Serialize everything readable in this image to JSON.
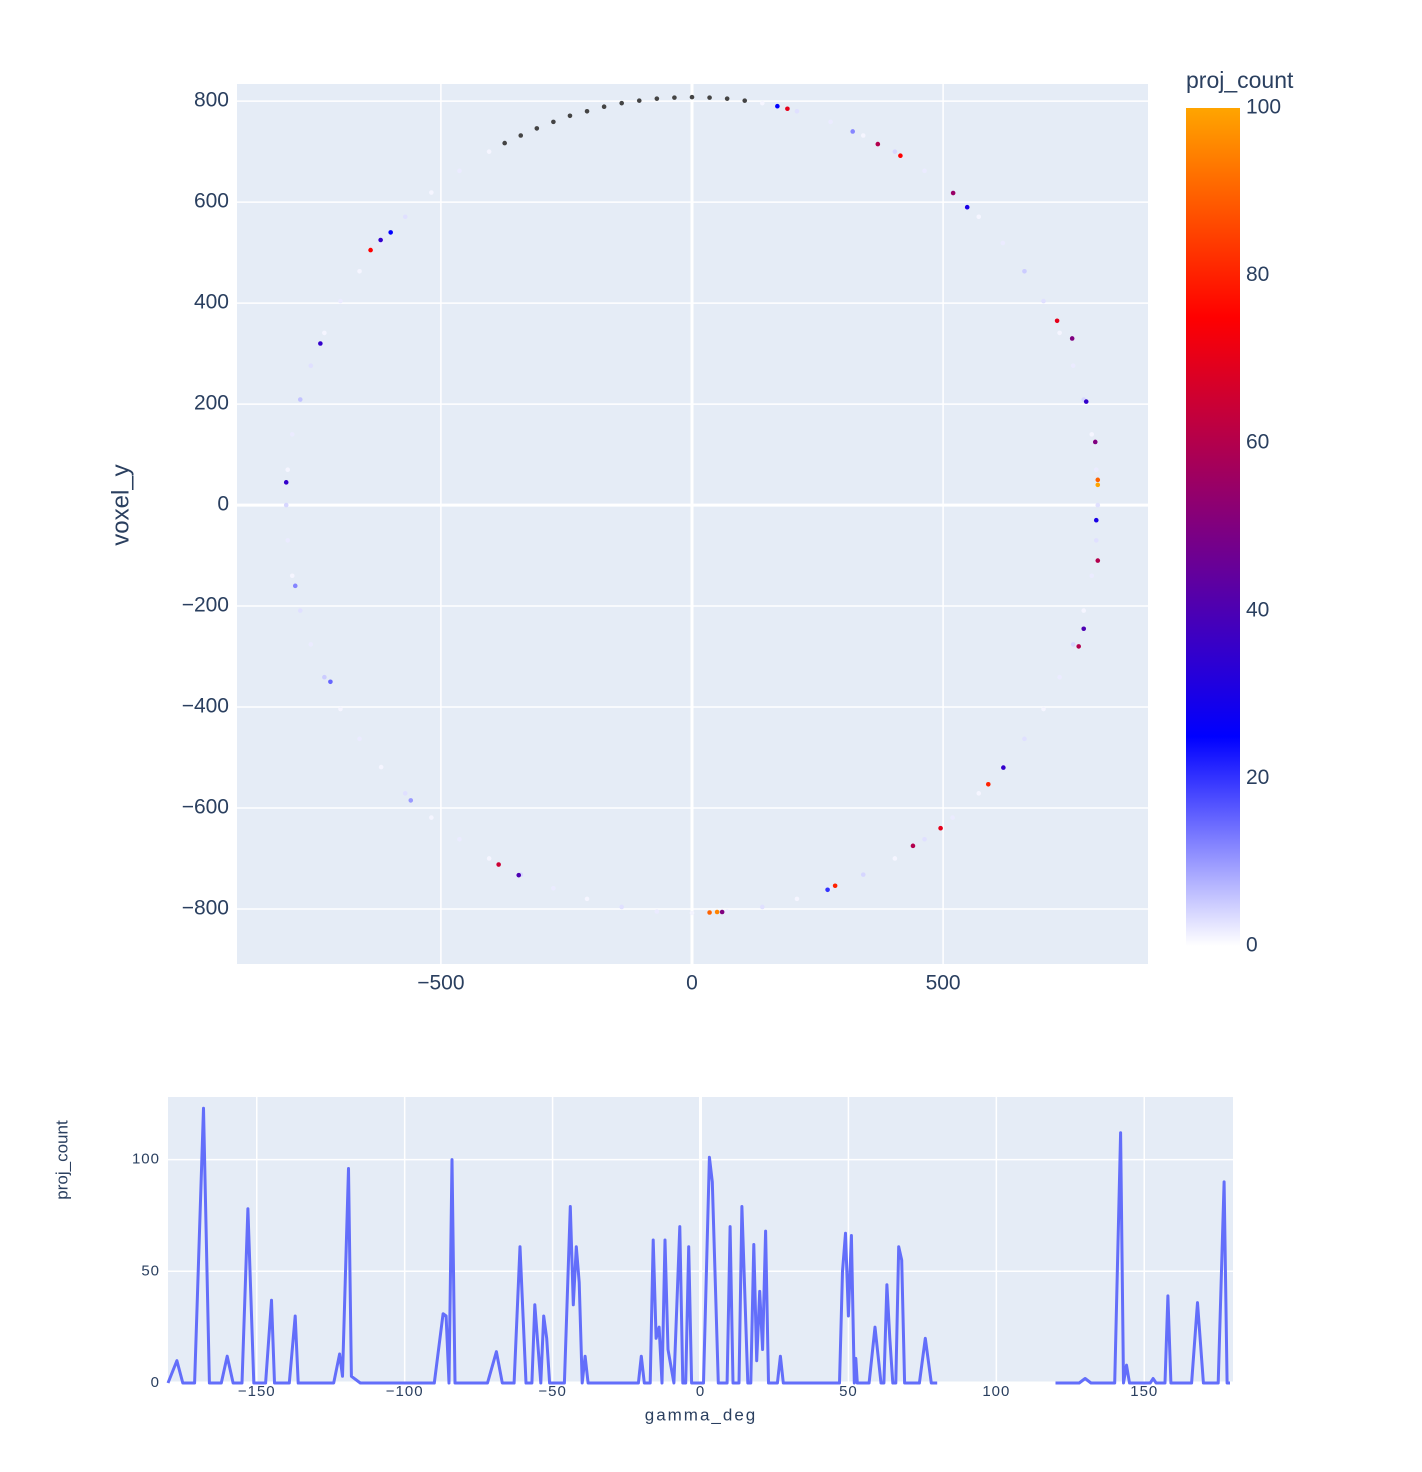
{
  "chart_data": [
    {
      "type": "scatter",
      "ylabel": "voxel_y",
      "colorbar_title": "proj_count",
      "x": [
        808,
        805,
        796,
        780,
        759,
        732,
        700,
        662,
        619,
        571,
        519,
        463,
        404,
        341,
        276,
        209,
        140,
        105,
        70,
        35,
        0,
        -35,
        -70,
        -105,
        -140,
        -175,
        -209,
        -243,
        -276,
        -309,
        -341,
        -373,
        -404,
        -463,
        -519,
        -571,
        -619,
        -662,
        -700,
        -732,
        -759,
        -780,
        -796,
        -805,
        -808,
        -805,
        -796,
        -780,
        -759,
        -732,
        -700,
        -662,
        -619,
        -571,
        -519,
        -463,
        -404,
        -341,
        -276,
        -209,
        -140,
        -70,
        0,
        70,
        140,
        209,
        276,
        341,
        404,
        463,
        519,
        571,
        619,
        662,
        700,
        732,
        759,
        780,
        796,
        805,
        -808,
        -740,
        -720,
        -560,
        -790,
        -385,
        -345,
        50,
        35,
        60,
        285,
        270,
        440,
        495,
        590,
        620,
        780,
        770,
        805,
        808,
        808,
        808,
        803,
        785,
        757,
        727,
        520,
        548,
        415,
        370,
        320,
        190,
        170,
        -600,
        -620,
        -640
      ],
      "y": [
        0,
        70,
        140,
        209,
        276,
        341,
        404,
        463,
        519,
        571,
        619,
        662,
        700,
        732,
        759,
        780,
        796,
        801,
        805,
        807,
        808,
        807,
        805,
        801,
        796,
        789,
        780,
        771,
        759,
        746,
        732,
        717,
        700,
        662,
        619,
        571,
        519,
        463,
        404,
        341,
        276,
        209,
        140,
        70,
        0,
        -70,
        -140,
        -209,
        -276,
        -341,
        -404,
        -463,
        -519,
        -571,
        -619,
        -662,
        -700,
        -732,
        -759,
        -780,
        -796,
        -805,
        -808,
        -805,
        -796,
        -780,
        -759,
        -732,
        -700,
        -662,
        -619,
        -571,
        -519,
        -463,
        -404,
        -341,
        -276,
        -209,
        -140,
        -70,
        45,
        320,
        -350,
        -585,
        -160,
        -712,
        -733,
        -806,
        -807,
        -806,
        -754,
        -762,
        -675,
        -640,
        -553,
        -520,
        -245,
        -280,
        -30,
        -110,
        50,
        40,
        125,
        205,
        330,
        365,
        618,
        590,
        692,
        715,
        740,
        785,
        790,
        540,
        525,
        505
      ],
      "color_values": [
        3,
        2,
        1,
        4,
        2,
        1,
        3,
        5,
        2,
        1,
        3,
        2,
        4,
        1,
        2,
        3,
        1,
        null,
        null,
        null,
        null,
        null,
        null,
        null,
        null,
        null,
        null,
        null,
        null,
        null,
        null,
        null,
        1,
        2,
        1,
        3,
        2,
        1,
        2,
        1,
        3,
        6,
        2,
        1,
        4,
        2,
        1,
        3,
        2,
        5,
        1,
        2,
        1,
        3,
        1,
        2,
        1,
        4,
        2,
        1,
        3,
        2,
        1,
        2,
        3,
        1,
        2,
        4,
        1,
        3,
        2,
        1,
        2,
        3,
        1,
        2,
        4,
        1,
        2,
        3,
        35,
        35,
        15,
        10,
        12,
        65,
        40,
        95,
        90,
        50,
        80,
        20,
        60,
        70,
        80,
        35,
        40,
        60,
        30,
        60,
        90,
        100,
        50,
        35,
        50,
        70,
        55,
        30,
        75,
        60,
        12,
        70,
        25,
        25,
        35,
        75
      ],
      "colorscale": [
        [
          0,
          "#ffffff"
        ],
        [
          0.25,
          "#0000ff"
        ],
        [
          0.75,
          "#ff0000"
        ],
        [
          1,
          "#ffa500"
        ]
      ],
      "clim": [
        0,
        100
      ],
      "cticks": [
        0,
        20,
        40,
        60,
        80,
        100
      ],
      "null_color": "#444444",
      "xlim": [
        -906,
        908
      ],
      "ylim": [
        -909,
        834
      ],
      "xticks": [
        {
          "value": -500,
          "label": "−500"
        },
        0,
        500
      ],
      "yticks": [
        {
          "value": -800,
          "label": "−800"
        },
        {
          "value": -600,
          "label": "−600"
        },
        {
          "value": -400,
          "label": "−400"
        },
        {
          "value": -200,
          "label": "−200"
        },
        0,
        200,
        400,
        600,
        800
      ],
      "grid": true
    },
    {
      "type": "line",
      "xlabel": "gamma_deg",
      "ylabel": "proj_count",
      "color": "#636efa",
      "x": [
        -180,
        -177,
        -175,
        -171,
        -168,
        -166,
        -162,
        -160,
        -158,
        -155,
        -153,
        -151,
        -147,
        -145,
        -144,
        -139,
        -137,
        -136,
        -124,
        -122,
        -121,
        -119,
        -118,
        -115,
        -90,
        -87,
        -86,
        -85,
        -84,
        -83,
        -72,
        -69,
        -67,
        -63,
        -61,
        -59,
        -57,
        -56,
        -54,
        -53,
        -52,
        -51,
        -46,
        -44,
        -43,
        -42,
        -41,
        -40,
        -39,
        -38,
        -21,
        -20,
        -19,
        -17,
        -16,
        -15,
        -14,
        -13,
        -12,
        -11,
        -9,
        -7,
        -6,
        -5,
        -4,
        -3,
        1,
        3,
        4,
        6,
        9,
        10,
        11,
        13,
        14,
        16,
        17,
        18,
        19,
        20,
        21,
        22,
        23,
        26,
        27,
        28,
        47,
        48,
        49,
        50,
        51,
        52,
        52.5,
        53,
        57,
        59,
        61,
        62,
        63,
        64,
        65,
        66,
        67,
        68,
        69,
        74,
        76,
        78,
        80,
        100,
        120,
        128,
        130,
        132,
        140,
        142,
        143,
        144,
        145,
        152,
        153,
        154,
        157,
        158,
        159,
        166,
        168,
        170,
        175,
        177,
        178,
        179
      ],
      "values": [
        0,
        10,
        0,
        0,
        123,
        0,
        0,
        12,
        0,
        0,
        78,
        0,
        0,
        37,
        0,
        0,
        30,
        0,
        0,
        13,
        3,
        96,
        3,
        0,
        0,
        31,
        30,
        0,
        100,
        0,
        0,
        14,
        0,
        0,
        61,
        0,
        0,
        35,
        0,
        30,
        20,
        0,
        0,
        79,
        35,
        61,
        45,
        0,
        12,
        0,
        0,
        12,
        0,
        0,
        64,
        20,
        25,
        0,
        64,
        15,
        0,
        70,
        0,
        0,
        61,
        0,
        0,
        101,
        90,
        0,
        0,
        70,
        0,
        0,
        79,
        0,
        0,
        62,
        10,
        41,
        15,
        68,
        0,
        0,
        12,
        0,
        0,
        50,
        67,
        30,
        66,
        0,
        11,
        0,
        0,
        25,
        0,
        0,
        44,
        20,
        0,
        0,
        61,
        55,
        0,
        0,
        20,
        0,
        0,
        null,
        0,
        0,
        2,
        0,
        0,
        112,
        0,
        8,
        0,
        0,
        2,
        0,
        0,
        39,
        0,
        0,
        36,
        0,
        0,
        90,
        0,
        0
      ],
      "xlim": [
        -180,
        180
      ],
      "ylim": [
        0,
        128
      ],
      "xticks": [
        {
          "value": -150,
          "label": "−150"
        },
        {
          "value": -100,
          "label": "−100"
        },
        {
          "value": -50,
          "label": "−50"
        },
        0,
        50,
        100,
        150
      ],
      "yticks": [
        0,
        50,
        100
      ],
      "grid": true
    }
  ]
}
